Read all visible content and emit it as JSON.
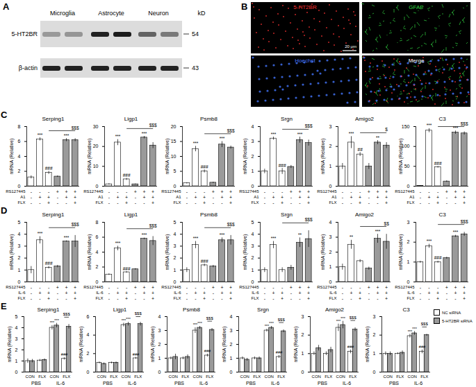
{
  "panels": [
    {
      "label": "A",
      "lanes": [
        "Microglia",
        "Astrocyte",
        "Neuron"
      ],
      "unit": "kD",
      "bands": [
        {
          "name": "5-HT2BR",
          "kd": 54
        },
        {
          "name": "β-actin",
          "kd": 43
        }
      ]
    },
    {
      "label": "B",
      "channels": [
        {
          "name": "5-HT2BR",
          "color": "#ff3333"
        },
        {
          "name": "GFAP",
          "color": "#33dd44"
        },
        {
          "name": "Hoechst",
          "color": "#4477ff"
        },
        {
          "name": "Merge",
          "color": "#ffffff"
        }
      ],
      "scale_bar": "20 μm"
    },
    {
      "label": "C",
      "treatments": [
        {
          "label": "RS127445",
          "signs": [
            "-",
            "-",
            "-",
            "+",
            "+",
            "+"
          ]
        },
        {
          "label": "A1",
          "signs": [
            "-",
            "+",
            "+",
            "-",
            "+",
            "+"
          ]
        },
        {
          "label": "FLX",
          "signs": [
            "-",
            "-",
            "+",
            "-",
            "-",
            "+"
          ]
        }
      ]
    },
    {
      "label": "D",
      "treatments": [
        {
          "label": "RS127445",
          "signs": [
            "-",
            "-",
            "-",
            "+",
            "+",
            "+"
          ]
        },
        {
          "label": "IL-6",
          "signs": [
            "-",
            "+",
            "+",
            "-",
            "+",
            "+"
          ]
        },
        {
          "label": "FLX",
          "signs": [
            "-",
            "-",
            "+",
            "-",
            "-",
            "+"
          ]
        }
      ]
    },
    {
      "label": "E",
      "legend": "right"
    }
  ],
  "chart_data": [
    {
      "panel": "C",
      "type": "bar",
      "title": "Serping1",
      "y_label": "mRNA (Relative)",
      "ylim": [
        0,
        8
      ],
      "yticks": [
        0,
        2,
        4,
        6,
        8
      ],
      "values": [
        1.2,
        6.3,
        1.8,
        1.3,
        6.2,
        6.2
      ],
      "errors": [
        0.2,
        0.2,
        0.2,
        0.1,
        0.2,
        0.2
      ],
      "colors": [
        "#ffffff",
        "#ffffff",
        "#ffffff",
        "#9a9a9a",
        "#9a9a9a",
        "#9a9a9a"
      ],
      "annotations": [
        null,
        "***",
        "###",
        null,
        "***",
        null
      ],
      "bracket_label": "$$$"
    },
    {
      "panel": "C",
      "type": "bar",
      "title": "Ligp1",
      "y_label": "mRNA (Relative)",
      "ylim": [
        0,
        30
      ],
      "yticks": [
        0,
        10,
        20,
        30
      ],
      "values": [
        1,
        22,
        3.5,
        1,
        24.5,
        20.5
      ],
      "errors": [
        0.3,
        1.5,
        0.5,
        0.2,
        0.6,
        1.5
      ],
      "colors": [
        "#ffffff",
        "#ffffff",
        "#ffffff",
        "#9a9a9a",
        "#9a9a9a",
        "#9a9a9a"
      ],
      "annotations": [
        null,
        "***",
        "###",
        null,
        "***",
        null
      ],
      "bracket_label": "$$$"
    },
    {
      "panel": "C",
      "type": "bar",
      "title": "Psmb8",
      "y_label": "mRNA (Relative)",
      "ylim": [
        0,
        20
      ],
      "yticks": [
        0,
        5,
        10,
        15,
        20
      ],
      "values": [
        1,
        12.5,
        5,
        1.2,
        14,
        13
      ],
      "errors": [
        0.2,
        0.9,
        0.5,
        0.2,
        1,
        0.5
      ],
      "colors": [
        "#ffffff",
        "#ffffff",
        "#ffffff",
        "#9a9a9a",
        "#9a9a9a",
        "#9a9a9a"
      ],
      "annotations": [
        null,
        "***",
        "###",
        null,
        "***",
        null
      ],
      "bracket_label": "$$$"
    },
    {
      "panel": "C",
      "type": "bar",
      "title": "Srgn",
      "y_label": "mRNA (Relative)",
      "ylim": [
        0,
        4
      ],
      "yticks": [
        0,
        1,
        2,
        3,
        4
      ],
      "values": [
        1,
        3.2,
        1,
        1.3,
        3.1,
        2.9
      ],
      "errors": [
        0.15,
        0.1,
        0.2,
        0.1,
        0.2,
        0.2
      ],
      "colors": [
        "#ffffff",
        "#ffffff",
        "#ffffff",
        "#9a9a9a",
        "#9a9a9a",
        "#9a9a9a"
      ],
      "annotations": [
        null,
        "***",
        "###",
        null,
        "***",
        null
      ],
      "bracket_label": "$$$"
    },
    {
      "panel": "C",
      "type": "bar",
      "title": "Amigo2",
      "y_label": "mRNA (Relative)",
      "ylim": [
        0,
        3
      ],
      "yticks": [
        0,
        1,
        2,
        3
      ],
      "values": [
        1,
        2.2,
        1.6,
        1,
        2.2,
        2.05
      ],
      "errors": [
        0.15,
        0.3,
        0.1,
        0.15,
        0.1,
        0.15
      ],
      "colors": [
        "#ffffff",
        "#ffffff",
        "#ffffff",
        "#9a9a9a",
        "#9a9a9a",
        "#9a9a9a"
      ],
      "annotations": [
        null,
        "***",
        "##",
        null,
        "**",
        null
      ],
      "bracket_label": "$"
    },
    {
      "panel": "C",
      "type": "bar",
      "title": "C3",
      "y_label": "mRNA (Relative)",
      "ylim": [
        0,
        150
      ],
      "yticks": [
        0,
        50,
        100,
        150
      ],
      "values": [
        1,
        140,
        48,
        12,
        135,
        133
      ],
      "errors": [
        0.5,
        5,
        2,
        2,
        4,
        4
      ],
      "colors": [
        "#ffffff",
        "#ffffff",
        "#ffffff",
        "#9a9a9a",
        "#9a9a9a",
        "#9a9a9a"
      ],
      "annotations": [
        null,
        "***",
        "###",
        null,
        "***",
        null
      ],
      "bracket_label": "$$$"
    },
    {
      "panel": "D",
      "type": "bar",
      "title": "Serping1",
      "y_label": "mRNA (Relative)",
      "ylim": [
        0,
        5
      ],
      "yticks": [
        0,
        1,
        2,
        3,
        4,
        5
      ],
      "values": [
        1,
        3.5,
        1.2,
        1.3,
        3.4,
        3.4
      ],
      "errors": [
        0.3,
        0.3,
        0.1,
        0.1,
        0.05,
        0.5
      ],
      "colors": [
        "#ffffff",
        "#ffffff",
        "#ffffff",
        "#9a9a9a",
        "#9a9a9a",
        "#9a9a9a"
      ],
      "annotations": [
        null,
        "***",
        "###",
        null,
        "***",
        null
      ],
      "bracket_label": "$$$"
    },
    {
      "panel": "D",
      "type": "bar",
      "title": "Ligp1",
      "y_label": "mRNA (Relative)",
      "ylim": [
        0,
        8
      ],
      "yticks": [
        0,
        2,
        4,
        6,
        8
      ],
      "values": [
        1,
        4.5,
        1.3,
        1.7,
        5.8,
        5.5
      ],
      "errors": [
        0.1,
        0.3,
        0.1,
        0.1,
        0.1,
        0.6
      ],
      "colors": [
        "#ffffff",
        "#ffffff",
        "#ffffff",
        "#9a9a9a",
        "#9a9a9a",
        "#9a9a9a"
      ],
      "annotations": [
        null,
        "***",
        "###",
        null,
        "***",
        null
      ],
      "bracket_label": "$$$"
    },
    {
      "panel": "D",
      "type": "bar",
      "title": "Psmb8",
      "y_label": "mRNA (Relative)",
      "ylim": [
        0,
        5
      ],
      "yticks": [
        0,
        1,
        2,
        3,
        4,
        5
      ],
      "values": [
        1,
        3.1,
        1.4,
        1.3,
        3.5,
        3.5
      ],
      "errors": [
        0.2,
        0.3,
        0.1,
        0.1,
        0.2,
        0.4
      ],
      "colors": [
        "#ffffff",
        "#ffffff",
        "#ffffff",
        "#9a9a9a",
        "#9a9a9a",
        "#9a9a9a"
      ],
      "annotations": [
        null,
        "***",
        "###",
        null,
        "***",
        null
      ],
      "bracket_label": "$$$"
    },
    {
      "panel": "D",
      "type": "bar",
      "title": "Srgn",
      "y_label": "mRNA (Relative)",
      "ylim": [
        0,
        5
      ],
      "yticks": [
        0,
        1,
        2,
        3,
        4,
        5
      ],
      "values": [
        1,
        3.1,
        1,
        1.2,
        3.3,
        3.6
      ],
      "errors": [
        0.2,
        0.3,
        0.2,
        0.2,
        0.4,
        0.7
      ],
      "colors": [
        "#ffffff",
        "#ffffff",
        "#ffffff",
        "#9a9a9a",
        "#9a9a9a",
        "#9a9a9a"
      ],
      "annotations": [
        null,
        "***",
        null,
        null,
        "**",
        null
      ],
      "bracket_label": "$$$"
    },
    {
      "panel": "D",
      "type": "bar",
      "title": "Amigo2",
      "y_label": "mRNA (Relative)",
      "ylim": [
        0,
        4
      ],
      "yticks": [
        0,
        1,
        2,
        3,
        4
      ],
      "values": [
        1,
        2.5,
        1.4,
        0.9,
        2.9,
        2.7
      ],
      "errors": [
        0.2,
        0.3,
        0.1,
        0.1,
        0.3,
        0.5
      ],
      "colors": [
        "#ffffff",
        "#ffffff",
        "#ffffff",
        "#9a9a9a",
        "#9a9a9a",
        "#9a9a9a"
      ],
      "annotations": [
        null,
        "**",
        null,
        null,
        "***",
        null
      ],
      "bracket_label": "$$"
    },
    {
      "panel": "D",
      "type": "bar",
      "title": "C3",
      "y_label": "mRNA (Relative)",
      "ylim": [
        0,
        3
      ],
      "yticks": [
        0,
        1,
        2,
        3
      ],
      "values": [
        1,
        1.8,
        1,
        1.2,
        2.3,
        2.4
      ],
      "errors": [
        0.05,
        0.1,
        0.05,
        0.05,
        0.05,
        0.1
      ],
      "colors": [
        "#ffffff",
        "#ffffff",
        "#ffffff",
        "#9a9a9a",
        "#9a9a9a",
        "#9a9a9a"
      ],
      "annotations": [
        null,
        "***",
        "###",
        null,
        "***",
        null
      ],
      "bracket_label": "$$$"
    },
    {
      "panel": "E",
      "type": "bar",
      "title": "Serping1",
      "y_label": "mRNA (Relative)",
      "ylim": [
        0,
        5
      ],
      "yticks": [
        0,
        1,
        2,
        3,
        4,
        5
      ],
      "categories": [
        "CON",
        "FLX",
        "CON",
        "FLX"
      ],
      "groups": [
        "PBS",
        "IL-6"
      ],
      "bracket_label": "$$$",
      "series": [
        {
          "name": "NC siRNA",
          "color": "#ffffff",
          "values": [
            1,
            1.05,
            4.0,
            1.2
          ],
          "errors": [
            0.2,
            0.1,
            0.2,
            0.1
          ],
          "annotations": [
            null,
            null,
            "***",
            "###"
          ]
        },
        {
          "name": "5-HT2BR siRNA",
          "color": "#9a9a9a",
          "values": [
            1,
            1.1,
            4.2,
            4.1
          ],
          "errors": [
            0.15,
            0.1,
            0.2,
            0.2
          ],
          "annotations": [
            null,
            null,
            "***",
            null
          ]
        }
      ]
    },
    {
      "panel": "E",
      "type": "bar",
      "title": "Ligp1",
      "y_label": "mRNA (Relative)",
      "ylim": [
        0,
        6
      ],
      "yticks": [
        0,
        2,
        4,
        6
      ],
      "categories": [
        "CON",
        "FLX",
        "CON",
        "FLX"
      ],
      "groups": [
        "PBS",
        "IL-6"
      ],
      "bracket_label": "$$$",
      "series": [
        {
          "name": "NC siRNA",
          "color": "#ffffff",
          "values": [
            1,
            1,
            5.1,
            1.5
          ],
          "errors": [
            0.1,
            0.1,
            0.2,
            0.1
          ],
          "annotations": [
            null,
            null,
            "***",
            "###"
          ]
        },
        {
          "name": "5-HT2BR siRNA",
          "color": "#9a9a9a",
          "values": [
            0.9,
            1,
            5.2,
            5.2
          ],
          "errors": [
            0.1,
            0.1,
            0.2,
            0.2
          ],
          "annotations": [
            null,
            null,
            "***",
            null
          ]
        }
      ]
    },
    {
      "panel": "E",
      "type": "bar",
      "title": "Psmb8",
      "y_label": "mRNA (Relative)",
      "ylim": [
        0,
        4
      ],
      "yticks": [
        0,
        1,
        2,
        3,
        4
      ],
      "categories": [
        "CON",
        "FLX",
        "CON",
        "FLX"
      ],
      "groups": [
        "PBS",
        "IL-6"
      ],
      "bracket_label": "$$$",
      "series": [
        {
          "name": "NC siRNA",
          "color": "#ffffff",
          "values": [
            1,
            1,
            3,
            1.2
          ],
          "errors": [
            0.1,
            0.1,
            0.2,
            0.1
          ],
          "annotations": [
            null,
            null,
            "***",
            "###"
          ]
        },
        {
          "name": "5-HT2BR siRNA",
          "color": "#9a9a9a",
          "values": [
            1.1,
            1.1,
            3.2,
            3.05
          ],
          "errors": [
            0.2,
            0.15,
            0.1,
            0.1
          ],
          "annotations": [
            null,
            null,
            "***",
            null
          ]
        }
      ]
    },
    {
      "panel": "E",
      "type": "bar",
      "title": "Srgn",
      "y_label": "mRNA (Relative)",
      "ylim": [
        0,
        4
      ],
      "yticks": [
        0,
        1,
        2,
        3,
        4
      ],
      "categories": [
        "CON",
        "FLX",
        "CON",
        "FLX"
      ],
      "groups": [
        "PBS",
        "IL-6"
      ],
      "bracket_label": "$$$",
      "series": [
        {
          "name": "NC siRNA",
          "color": "#ffffff",
          "values": [
            1,
            1,
            3,
            1.1
          ],
          "errors": [
            0.1,
            0.1,
            0.1,
            0.1
          ],
          "annotations": [
            null,
            null,
            "***",
            "###"
          ]
        },
        {
          "name": "5-HT2BR siRNA",
          "color": "#9a9a9a",
          "values": [
            0.9,
            1,
            3.2,
            2.95
          ],
          "errors": [
            0.1,
            0.1,
            0.1,
            0.1
          ],
          "annotations": [
            null,
            null,
            "***",
            null
          ]
        }
      ]
    },
    {
      "panel": "E",
      "type": "bar",
      "title": "Amigo2",
      "y_label": "mRNA (Relative)",
      "ylim": [
        0,
        3
      ],
      "yticks": [
        0,
        1,
        2,
        3
      ],
      "categories": [
        "CON",
        "FLX",
        "CON",
        "FLX"
      ],
      "groups": [
        "PBS",
        "IL-6"
      ],
      "bracket_label": "$$$",
      "series": [
        {
          "name": "NC siRNA",
          "color": "#ffffff",
          "values": [
            1,
            1,
            2.4,
            1.1
          ],
          "errors": [
            0.1,
            0.1,
            0.2,
            0.1
          ],
          "annotations": [
            null,
            null,
            "***",
            "###"
          ]
        },
        {
          "name": "5-HT2BR siRNA",
          "color": "#9a9a9a",
          "values": [
            1.3,
            1.2,
            2.55,
            2.3
          ],
          "errors": [
            0.15,
            0.15,
            0.2,
            0.1
          ],
          "annotations": [
            null,
            null,
            "***",
            null
          ]
        }
      ]
    },
    {
      "panel": "E",
      "type": "bar",
      "title": "C3",
      "y_label": "mRNA (Relative)",
      "ylim": [
        0,
        3
      ],
      "yticks": [
        0,
        1,
        2,
        3
      ],
      "categories": [
        "CON",
        "FLX",
        "CON",
        "FLX"
      ],
      "groups": [
        "PBS",
        "IL-6"
      ],
      "bracket_label": "$$$",
      "series": [
        {
          "name": "NC siRNA",
          "color": "#ffffff",
          "values": [
            1,
            1,
            1.95,
            1.1
          ],
          "errors": [
            0.1,
            0.05,
            0.1,
            0.1
          ],
          "annotations": [
            null,
            null,
            "***",
            "###"
          ]
        },
        {
          "name": "5-HT2BR siRNA",
          "color": "#9a9a9a",
          "values": [
            1,
            1.05,
            2.1,
            2.0
          ],
          "errors": [
            0.1,
            0.1,
            0.1,
            0.05
          ],
          "annotations": [
            null,
            null,
            "***",
            null
          ]
        }
      ]
    }
  ]
}
